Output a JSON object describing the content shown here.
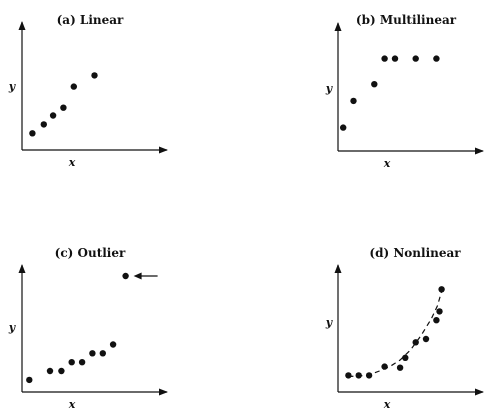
{
  "chart_data": [
    {
      "type": "scatter",
      "title": "(a) Linear",
      "xlabel": "x",
      "ylabel": "y",
      "x": [
        1.0,
        2.1,
        3.0,
        4.0,
        5.0,
        7.0
      ],
      "y": [
        1.0,
        1.8,
        2.6,
        3.3,
        5.2,
        6.2
      ],
      "xlim": [
        0,
        14
      ],
      "ylim": [
        -0.5,
        11
      ],
      "grid": false
    },
    {
      "type": "scatter",
      "title": "(b) Multilinear",
      "xlabel": "x",
      "ylabel": "y",
      "x": [
        0.5,
        1.5,
        3.5,
        4.5,
        5.5,
        7.5,
        9.5
      ],
      "y": [
        1.6,
        4.0,
        5.5,
        7.8,
        7.8,
        7.8,
        7.8
      ],
      "xlim": [
        0,
        14
      ],
      "ylim": [
        -0.5,
        11
      ],
      "grid": false
    },
    {
      "type": "scatter",
      "title": "(c) Outlier",
      "xlabel": "x",
      "ylabel": "y",
      "x": [
        0.7,
        2.7,
        3.8,
        4.8,
        5.8,
        6.8,
        7.8,
        8.8,
        10.0
      ],
      "y": [
        0.6,
        1.4,
        1.4,
        2.2,
        2.2,
        3.0,
        3.0,
        3.8,
        10.0
      ],
      "xlim": [
        0,
        14
      ],
      "ylim": [
        -0.5,
        11
      ],
      "grid": false,
      "annotations": [
        {
          "type": "arrow",
          "target_index": 8
        }
      ]
    },
    {
      "type": "scatter",
      "title": "(d) Nonlinear",
      "xlabel": "x",
      "ylabel": "y",
      "x": [
        1.0,
        2.0,
        3.0,
        4.5,
        6.0,
        6.5,
        7.5,
        8.5,
        9.5,
        9.8,
        10.0
      ],
      "y": [
        1.0,
        1.0,
        1.0,
        1.8,
        1.7,
        2.6,
        4.0,
        4.3,
        6.0,
        6.8,
        8.8
      ],
      "xlim": [
        0,
        14
      ],
      "ylim": [
        -0.5,
        11
      ],
      "grid": false,
      "curve": {
        "style": "dashed",
        "x": [
          1.0,
          2.0,
          3.0,
          4.0,
          5.0,
          6.0,
          7.0,
          8.0,
          9.0,
          9.6,
          10.0
        ],
        "y": [
          0.9,
          0.95,
          1.05,
          1.4,
          1.8,
          2.4,
          3.3,
          4.6,
          6.1,
          7.3,
          8.6
        ]
      }
    }
  ]
}
